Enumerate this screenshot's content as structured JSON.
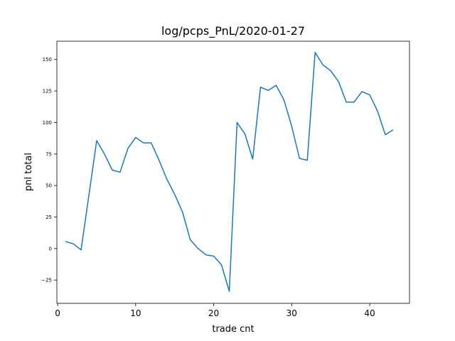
{
  "chart_data": {
    "type": "line",
    "title": "log/pcps_PnL/2020-01-27",
    "xlabel": "trade cnt",
    "ylabel": "pnl total",
    "xlim": [
      -0.1,
      45.1
    ],
    "ylim": [
      -43.5,
      164.5
    ],
    "xticks": [
      0,
      10,
      20,
      30,
      40
    ],
    "xtick_labels": [
      "0",
      "10",
      "20",
      "30",
      "40"
    ],
    "yticks": [
      -25,
      0,
      25,
      50,
      75,
      100,
      125,
      150
    ],
    "ytick_labels": [
      "−25",
      "0",
      "25",
      "50",
      "75",
      "100",
      "125",
      "150"
    ],
    "grid": false,
    "color": "#1f77b4",
    "series": [
      {
        "x": [
          1,
          2,
          3,
          4,
          5,
          6,
          7,
          8,
          9,
          10,
          11,
          12,
          13,
          14,
          15,
          16,
          17,
          18,
          19,
          20,
          21,
          22,
          23,
          24,
          25,
          26,
          27,
          28,
          29,
          30,
          31,
          32,
          33,
          34,
          35,
          36,
          37,
          38,
          39,
          40,
          41,
          42,
          43
        ],
        "values": [
          5.5,
          3.8,
          -1.1,
          42,
          85.6,
          75,
          62.2,
          60.6,
          79.4,
          88.1,
          83.8,
          83.8,
          70,
          55,
          43,
          29,
          7,
          0,
          -5,
          -6,
          -13,
          -34,
          100,
          91,
          71,
          128,
          125.5,
          129.5,
          118,
          97,
          71.5,
          70,
          155.6,
          145.7,
          141,
          132.5,
          116.2,
          116.2,
          124.5,
          121.9,
          109,
          90.3,
          94.2
        ]
      }
    ]
  }
}
